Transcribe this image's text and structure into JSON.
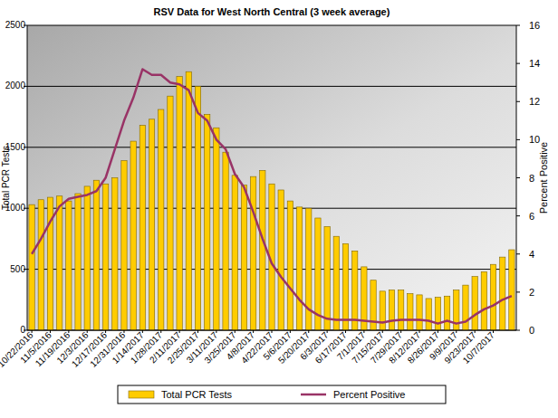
{
  "chart_data": {
    "type": "bar",
    "title": "RSV Data for West North Central (3 week average)",
    "y_label": "Total PCR Tests",
    "y2_label": "Percent Positive",
    "categories": [
      "10/22/2016",
      null,
      "11/5/2016",
      null,
      "11/19/2016",
      null,
      "12/3/2016",
      null,
      "12/17/2016",
      null,
      "12/31/2016",
      null,
      "1/14/2017",
      null,
      "1/28/2017",
      null,
      "2/11/2017",
      null,
      "2/25/2017",
      null,
      "3/11/2017",
      null,
      "3/25/2017",
      null,
      "4/8/2017",
      null,
      "4/22/2017",
      null,
      "5/6/2017",
      null,
      "5/20/2017",
      null,
      "6/3/2017",
      null,
      "6/17/2017",
      null,
      "7/1/2017",
      null,
      "7/15/2017",
      null,
      "7/29/2017",
      null,
      "8/12/2017",
      null,
      "8/26/2017",
      null,
      "9/9/2017",
      null,
      "9/23/2017",
      null,
      "10/7/2017",
      null,
      null
    ],
    "series": [
      {
        "name": "Total PCR Tests",
        "type": "bar",
        "color": "#ffcc00",
        "values": [
          1030,
          1070,
          1090,
          1100,
          1060,
          1120,
          1180,
          1230,
          1200,
          1250,
          1390,
          1550,
          1680,
          1730,
          1810,
          1920,
          2080,
          2120,
          2000,
          1770,
          1660,
          1460,
          1270,
          1190,
          1260,
          1310,
          1200,
          1150,
          1060,
          1010,
          1000,
          920,
          850,
          770,
          710,
          650,
          520,
          410,
          320,
          330,
          330,
          300,
          290,
          260,
          270,
          280,
          330,
          370,
          440,
          480,
          540,
          600,
          660
        ]
      },
      {
        "name": "Percent Positive",
        "type": "line",
        "axis": "y2",
        "color": "#993366",
        "values": [
          4.0,
          4.8,
          5.7,
          6.5,
          6.9,
          7.0,
          7.1,
          7.3,
          8.0,
          9.5,
          11.0,
          12.2,
          13.7,
          13.4,
          13.4,
          13.0,
          12.9,
          12.6,
          11.4,
          11.0,
          10.0,
          9.5,
          8.2,
          7.5,
          6.2,
          4.8,
          3.5,
          2.8,
          2.2,
          1.6,
          1.1,
          0.8,
          0.6,
          0.55,
          0.55,
          0.55,
          0.5,
          0.45,
          0.4,
          0.5,
          0.55,
          0.55,
          0.55,
          0.5,
          0.35,
          0.5,
          0.35,
          0.45,
          0.8,
          1.1,
          1.3,
          1.6,
          1.8
        ]
      }
    ],
    "ylim": [
      0,
      2500
    ],
    "yticks": [
      0,
      500,
      1000,
      1500,
      2000,
      2500
    ],
    "y2lim": [
      0,
      16
    ],
    "y2ticks": [
      0,
      2,
      4,
      6,
      8,
      10,
      12,
      14,
      16
    ],
    "grid": true,
    "legend": "bottom"
  }
}
